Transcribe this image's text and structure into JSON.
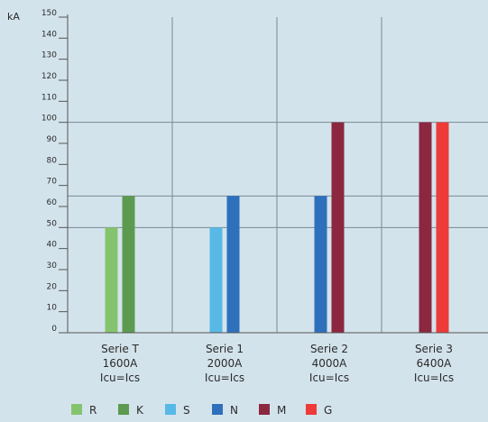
{
  "chart_data": {
    "type": "bar",
    "ylabel": "kA",
    "ylim": [
      0,
      150
    ],
    "yticks": [
      0,
      10,
      20,
      30,
      40,
      50,
      60,
      70,
      80,
      90,
      100,
      110,
      120,
      130,
      140,
      150
    ],
    "reference_lines": [
      50,
      65,
      100
    ],
    "categories": [
      {
        "lines": [
          "Serie T",
          "1600A",
          "Icu=Ics"
        ],
        "bars": [
          "R",
          "K"
        ]
      },
      {
        "lines": [
          "Serie 1",
          "2000A",
          "Icu=Ics"
        ],
        "bars": [
          "S",
          "N"
        ]
      },
      {
        "lines": [
          "Serie 2",
          "4000A",
          "Icu=Ics"
        ],
        "bars": [
          "N",
          "M"
        ]
      },
      {
        "lines": [
          "Serie 3",
          "6400A",
          "Icu=Ics"
        ],
        "bars": [
          "M",
          "G"
        ]
      }
    ],
    "series": [
      {
        "name": "R",
        "color": "#85c46e",
        "values": [
          50,
          null,
          null,
          null
        ]
      },
      {
        "name": "K",
        "color": "#5c9a50",
        "values": [
          65,
          null,
          null,
          null
        ]
      },
      {
        "name": "S",
        "color": "#58b9e6",
        "values": [
          null,
          50,
          null,
          null
        ]
      },
      {
        "name": "N",
        "color": "#2e70bb",
        "values": [
          null,
          65,
          65,
          null
        ]
      },
      {
        "name": "M",
        "color": "#8b2840",
        "values": [
          null,
          null,
          100,
          100
        ]
      },
      {
        "name": "G",
        "color": "#ee3a38",
        "values": [
          null,
          null,
          null,
          100
        ]
      }
    ],
    "grid": false,
    "legend_position": "bottom-left"
  }
}
